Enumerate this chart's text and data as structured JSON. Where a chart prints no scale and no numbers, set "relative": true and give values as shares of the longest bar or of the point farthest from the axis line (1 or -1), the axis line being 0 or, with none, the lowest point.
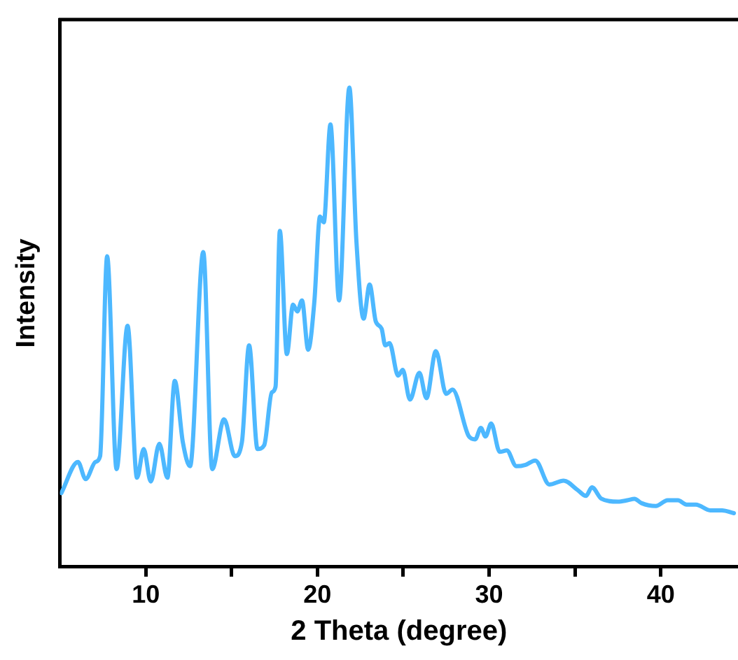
{
  "chart_data": {
    "type": "line",
    "xlabel": "2 Theta (degree)",
    "ylabel": "Intensity",
    "relative": true,
    "xlim": [
      5,
      44.5
    ],
    "xticks": [
      10,
      {
        "value": 15,
        "label": null
      },
      20,
      {
        "value": 25,
        "label": null
      },
      30,
      {
        "value": 35,
        "label": null
      },
      40
    ],
    "grid": false,
    "legend": false,
    "marker": "none",
    "line_style": "solid",
    "series": [
      {
        "color": "#4db8ff",
        "x": [
          5.08,
          6.05,
          6.5,
          7.07,
          7.34,
          7.75,
          8.3,
          8.94,
          9.49,
          9.88,
          10.29,
          10.79,
          11.26,
          11.69,
          12.16,
          12.58,
          13.35,
          13.87,
          14.56,
          15.19,
          15.6,
          16.02,
          16.51,
          16.9,
          17.34,
          17.56,
          17.81,
          18.22,
          18.58,
          18.83,
          19.1,
          19.46,
          19.82,
          20.15,
          20.37,
          20.76,
          21.26,
          21.86,
          22.27,
          22.69,
          23.04,
          23.4,
          23.74,
          23.95,
          24.2,
          24.7,
          24.97,
          25.39,
          25.94,
          26.35,
          26.9,
          27.5,
          27.87,
          28.83,
          29.19,
          29.52,
          29.79,
          30.12,
          30.62,
          31.03,
          31.59,
          32.13,
          32.69,
          33.51,
          34.34,
          35.17,
          35.64,
          35.99,
          36.55,
          37.5,
          38.06,
          38.47,
          38.88,
          39.71,
          40.4,
          41.0,
          41.5,
          42.05,
          42.88,
          43.57,
          44.26
        ],
        "values": [
          0.154,
          0.219,
          0.183,
          0.219,
          0.231,
          0.648,
          0.204,
          0.503,
          0.186,
          0.246,
          0.178,
          0.257,
          0.186,
          0.388,
          0.26,
          0.21,
          0.657,
          0.204,
          0.308,
          0.231,
          0.26,
          0.462,
          0.246,
          0.254,
          0.364,
          0.376,
          0.701,
          0.444,
          0.547,
          0.533,
          0.556,
          0.453,
          0.553,
          0.731,
          0.719,
          0.923,
          0.556,
          1,
          0.68,
          0.518,
          0.589,
          0.512,
          0.497,
          0.462,
          0.467,
          0.399,
          0.411,
          0.349,
          0.405,
          0.352,
          0.45,
          0.361,
          0.37,
          0.272,
          0.266,
          0.29,
          0.272,
          0.299,
          0.24,
          0.243,
          0.21,
          0.213,
          0.222,
          0.172,
          0.18,
          0.16,
          0.148,
          0.166,
          0.142,
          0.136,
          0.139,
          0.142,
          0.133,
          0.127,
          0.139,
          0.139,
          0.13,
          0.13,
          0.118,
          0.118,
          0.112
        ]
      }
    ]
  }
}
